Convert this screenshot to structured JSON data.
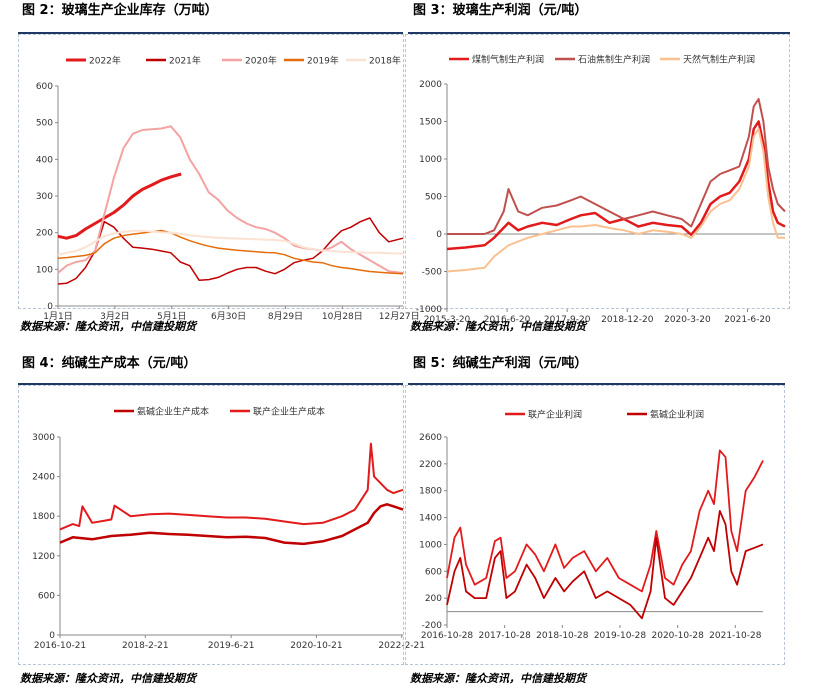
{
  "colors": {
    "rule": "#1f3864"
  },
  "panels": [
    {
      "title": "图 2：玻璃生产企业库存（万吨）",
      "source": "数据来源：隆众资讯，中信建投期货"
    },
    {
      "title": "图 3：玻璃生产利润（元/吨）",
      "source": "数据来源：隆众资讯，中信建投期货"
    },
    {
      "title": "图 4：纯碱生产成本（元/吨）",
      "source": "数据来源：隆众资讯，中信建投期货"
    },
    {
      "title": "图 5：纯碱生产利润（元/吨）",
      "source": "数据来源：隆众资讯，中信建投期货"
    }
  ],
  "chart_data": [
    {
      "type": "line",
      "title": "图 2：玻璃生产企业库存（万吨）",
      "ylim": [
        0,
        600
      ],
      "yticks": [
        "0",
        "100",
        "200",
        "300",
        "400",
        "500",
        "600"
      ],
      "xlim": [
        1,
        365
      ],
      "xticks": [
        {
          "x": 1,
          "label": "1月1日"
        },
        {
          "x": 61,
          "label": "3月2日"
        },
        {
          "x": 121,
          "label": "5月1日"
        },
        {
          "x": 181,
          "label": "6月30日"
        },
        {
          "x": 241,
          "label": "8月29日"
        },
        {
          "x": 301,
          "label": "10月28日"
        },
        {
          "x": 361,
          "label": "12月27日"
        }
      ],
      "legend_position": "top",
      "series": [
        {
          "name": "2022年",
          "color": "#e31a1c",
          "width": 3,
          "x": [
            1,
            10,
            20,
            30,
            40,
            50,
            60,
            70,
            80,
            90,
            100,
            110,
            120,
            131
          ],
          "values": [
            190,
            185,
            192,
            210,
            225,
            240,
            255,
            275,
            300,
            318,
            330,
            343,
            352,
            360
          ]
        },
        {
          "name": "2021年",
          "color": "#c00000",
          "width": 1.5,
          "x": [
            1,
            10,
            20,
            30,
            40,
            50,
            60,
            70,
            80,
            90,
            100,
            110,
            120,
            130,
            140,
            150,
            160,
            170,
            180,
            190,
            200,
            210,
            220,
            230,
            240,
            250,
            260,
            270,
            280,
            290,
            300,
            310,
            320,
            330,
            340,
            350,
            365
          ],
          "values": [
            60,
            62,
            75,
            105,
            150,
            230,
            215,
            185,
            160,
            158,
            155,
            150,
            145,
            120,
            110,
            70,
            72,
            78,
            90,
            100,
            105,
            105,
            95,
            88,
            100,
            118,
            125,
            130,
            150,
            180,
            205,
            215,
            230,
            240,
            200,
            175,
            185
          ]
        },
        {
          "name": "2020年",
          "color": "#f4a3a3",
          "width": 2,
          "x": [
            1,
            10,
            20,
            30,
            40,
            50,
            60,
            70,
            80,
            90,
            100,
            110,
            120,
            130,
            140,
            150,
            160,
            170,
            180,
            190,
            200,
            210,
            220,
            230,
            240,
            250,
            260,
            270,
            280,
            290,
            300,
            310,
            320,
            330,
            340,
            350,
            365
          ],
          "values": [
            90,
            110,
            120,
            125,
            150,
            250,
            350,
            430,
            470,
            480,
            482,
            484,
            490,
            460,
            400,
            360,
            310,
            290,
            260,
            240,
            225,
            215,
            210,
            200,
            185,
            165,
            158,
            155,
            150,
            160,
            175,
            155,
            140,
            125,
            110,
            95,
            90
          ]
        },
        {
          "name": "2019年",
          "color": "#e46c0a",
          "width": 1.5,
          "x": [
            1,
            10,
            20,
            30,
            40,
            50,
            60,
            70,
            80,
            90,
            100,
            110,
            120,
            130,
            140,
            150,
            160,
            170,
            180,
            190,
            200,
            210,
            220,
            230,
            240,
            250,
            260,
            270,
            280,
            290,
            300,
            310,
            320,
            330,
            340,
            350,
            365
          ],
          "values": [
            130,
            132,
            135,
            138,
            145,
            170,
            185,
            192,
            196,
            199,
            202,
            206,
            200,
            188,
            178,
            170,
            163,
            158,
            155,
            152,
            150,
            148,
            146,
            145,
            140,
            130,
            125,
            120,
            118,
            110,
            105,
            102,
            98,
            94,
            92,
            90,
            88
          ]
        },
        {
          "name": "2018年",
          "color": "#fbe2d2",
          "width": 2,
          "x": [
            1,
            10,
            20,
            30,
            40,
            50,
            60,
            70,
            80,
            90,
            100,
            110,
            120,
            130,
            140,
            150,
            160,
            170,
            180,
            190,
            200,
            210,
            220,
            230,
            240,
            250,
            260,
            270,
            280,
            290,
            300,
            310,
            320,
            330,
            340,
            350,
            365
          ],
          "values": [
            140,
            145,
            150,
            160,
            175,
            190,
            198,
            202,
            205,
            205,
            203,
            201,
            200,
            197,
            193,
            190,
            188,
            186,
            185,
            184,
            183,
            182,
            181,
            180,
            178,
            170,
            160,
            155,
            152,
            150,
            148,
            147,
            146,
            145,
            145,
            144,
            143
          ]
        }
      ]
    },
    {
      "type": "line",
      "title": "图 3：玻璃生产利润（元/吨）",
      "ylim": [
        -1000,
        2000
      ],
      "yticks": [
        "-1000",
        "-500",
        "0",
        "500",
        "1000",
        "1500",
        "2000"
      ],
      "xlim": [
        2015.22,
        2022.25
      ],
      "xticks": [
        {
          "x": 2015.22,
          "label": "2015-3-20"
        },
        {
          "x": 2016.47,
          "label": "2016-6-20"
        },
        {
          "x": 2017.72,
          "label": "2017-9-20"
        },
        {
          "x": 2018.97,
          "label": "2018-12-20"
        },
        {
          "x": 2020.22,
          "label": "2020-3-20"
        },
        {
          "x": 2021.47,
          "label": "2021-6-20"
        }
      ],
      "legend_position": "top",
      "series": [
        {
          "name": "煤制气制生产利润",
          "color": "#e31a1c",
          "width": 2.5,
          "x": [
            2015.22,
            2015.6,
            2016.0,
            2016.2,
            2016.5,
            2016.7,
            2016.9,
            2017.2,
            2017.5,
            2017.8,
            2018.0,
            2018.3,
            2018.6,
            2018.9,
            2019.2,
            2019.5,
            2019.8,
            2020.1,
            2020.3,
            2020.5,
            2020.7,
            2020.9,
            2021.1,
            2021.3,
            2021.5,
            2021.6,
            2021.7,
            2021.8,
            2021.9,
            2022.0,
            2022.1,
            2022.25
          ],
          "values": [
            -200,
            -180,
            -150,
            -50,
            150,
            50,
            100,
            150,
            120,
            200,
            250,
            280,
            150,
            200,
            100,
            150,
            120,
            100,
            -10,
            150,
            400,
            500,
            550,
            700,
            1000,
            1400,
            1500,
            1200,
            700,
            300,
            150,
            100
          ]
        },
        {
          "name": "石油焦制生产利润",
          "color": "#c0504d",
          "width": 2,
          "x": [
            2015.22,
            2015.6,
            2016.0,
            2016.2,
            2016.4,
            2016.5,
            2016.7,
            2016.9,
            2017.2,
            2017.5,
            2017.8,
            2018.0,
            2018.3,
            2018.6,
            2018.9,
            2019.2,
            2019.5,
            2019.8,
            2020.1,
            2020.3,
            2020.5,
            2020.7,
            2020.9,
            2021.1,
            2021.3,
            2021.5,
            2021.6,
            2021.7,
            2021.8,
            2021.9,
            2022.0,
            2022.1,
            2022.25
          ],
          "values": [
            0,
            0,
            0,
            50,
            300,
            600,
            300,
            250,
            350,
            380,
            450,
            500,
            400,
            300,
            200,
            250,
            300,
            250,
            200,
            100,
            400,
            700,
            800,
            850,
            900,
            1300,
            1700,
            1800,
            1500,
            900,
            600,
            400,
            300
          ]
        },
        {
          "name": "天然气制生产利润",
          "color": "#fac090",
          "width": 2,
          "x": [
            2015.22,
            2015.6,
            2016.0,
            2016.2,
            2016.5,
            2016.7,
            2016.9,
            2017.2,
            2017.5,
            2017.8,
            2018.0,
            2018.3,
            2018.6,
            2018.9,
            2019.2,
            2019.5,
            2019.8,
            2020.1,
            2020.3,
            2020.5,
            2020.7,
            2020.9,
            2021.1,
            2021.3,
            2021.5,
            2021.6,
            2021.7,
            2021.8,
            2021.9,
            2022.0,
            2022.1,
            2022.25
          ],
          "values": [
            -500,
            -480,
            -450,
            -300,
            -150,
            -100,
            -50,
            0,
            50,
            100,
            100,
            120,
            80,
            50,
            0,
            50,
            30,
            0,
            -50,
            100,
            300,
            400,
            450,
            600,
            900,
            1300,
            1400,
            1100,
            500,
            150,
            -50,
            -50
          ]
        }
      ]
    },
    {
      "type": "line",
      "title": "图 4：纯碱生产成本（元/吨）",
      "ylim": [
        0,
        3000
      ],
      "yticks": [
        "0",
        "600",
        "1200",
        "1800",
        "2400",
        "3000"
      ],
      "xlim": [
        2016.8,
        2022.15
      ],
      "xticks": [
        {
          "x": 2016.8,
          "label": "2016-10-21"
        },
        {
          "x": 2018.13,
          "label": "2018-2-21"
        },
        {
          "x": 2019.47,
          "label": "2019-6-21"
        },
        {
          "x": 2020.8,
          "label": "2020-10-21"
        },
        {
          "x": 2022.13,
          "label": "2022-2-21"
        }
      ],
      "legend_position": "top",
      "series": [
        {
          "name": "氨碱企业生产成本",
          "color": "#c00000",
          "width": 2.5,
          "x": [
            2016.8,
            2017.0,
            2017.3,
            2017.6,
            2017.9,
            2018.2,
            2018.5,
            2018.8,
            2019.1,
            2019.4,
            2019.7,
            2020.0,
            2020.3,
            2020.6,
            2020.9,
            2021.2,
            2021.4,
            2021.6,
            2021.7,
            2021.8,
            2021.9,
            2022.0,
            2022.15
          ],
          "values": [
            1400,
            1480,
            1450,
            1500,
            1520,
            1550,
            1530,
            1520,
            1500,
            1480,
            1490,
            1470,
            1400,
            1380,
            1420,
            1500,
            1600,
            1700,
            1850,
            1950,
            1980,
            1950,
            1900
          ]
        },
        {
          "name": "联产企业生产成本",
          "color": "#e31a1c",
          "width": 2,
          "x": [
            2016.8,
            2017.0,
            2017.1,
            2017.15,
            2017.3,
            2017.6,
            2017.65,
            2017.9,
            2018.2,
            2018.5,
            2018.8,
            2019.1,
            2019.4,
            2019.7,
            2020.0,
            2020.3,
            2020.6,
            2020.9,
            2021.2,
            2021.4,
            2021.6,
            2021.65,
            2021.7,
            2021.8,
            2021.9,
            2022.0,
            2022.15
          ],
          "values": [
            1600,
            1680,
            1650,
            1950,
            1700,
            1750,
            1960,
            1800,
            1830,
            1840,
            1820,
            1800,
            1780,
            1780,
            1760,
            1720,
            1680,
            1700,
            1800,
            1900,
            2200,
            2900,
            2400,
            2300,
            2200,
            2150,
            2200
          ]
        }
      ]
    },
    {
      "type": "line",
      "title": "图 5：纯碱生产利润（元/吨）",
      "ylim": [
        -200,
        2600
      ],
      "yticks": [
        "-200",
        "200",
        "600",
        "1000",
        "1400",
        "1800",
        "2200",
        "2600"
      ],
      "xlim": [
        2016.82,
        2022.3
      ],
      "xticks": [
        {
          "x": 2016.82,
          "label": "2016-10-28"
        },
        {
          "x": 2017.82,
          "label": "2017-10-28"
        },
        {
          "x": 2018.82,
          "label": "2018-10-28"
        },
        {
          "x": 2019.82,
          "label": "2019-10-28"
        },
        {
          "x": 2020.82,
          "label": "2020-10-28"
        },
        {
          "x": 2021.82,
          "label": "2021-10-28"
        }
      ],
      "legend_position": "top",
      "series": [
        {
          "name": "联产企业利润",
          "color": "#e31a1c",
          "width": 1.8,
          "x": [
            2016.82,
            2016.95,
            2017.05,
            2017.15,
            2017.3,
            2017.5,
            2017.65,
            2017.75,
            2017.85,
            2018.0,
            2018.2,
            2018.35,
            2018.5,
            2018.7,
            2018.85,
            2019.0,
            2019.2,
            2019.4,
            2019.6,
            2019.8,
            2020.0,
            2020.2,
            2020.35,
            2020.45,
            2020.6,
            2020.75,
            2020.9,
            2021.05,
            2021.2,
            2021.35,
            2021.45,
            2021.55,
            2021.65,
            2021.75,
            2021.85,
            2022.0,
            2022.15,
            2022.3
          ],
          "values": [
            500,
            1100,
            1250,
            700,
            400,
            500,
            1050,
            1100,
            500,
            600,
            1000,
            850,
            600,
            1000,
            650,
            800,
            900,
            600,
            800,
            500,
            400,
            300,
            700,
            1200,
            500,
            400,
            700,
            900,
            1500,
            1800,
            1600,
            2400,
            2300,
            1200,
            900,
            1800,
            2000,
            2250
          ]
        },
        {
          "name": "氨碱企业利润",
          "color": "#c00000",
          "width": 1.8,
          "x": [
            2016.82,
            2016.95,
            2017.05,
            2017.15,
            2017.3,
            2017.5,
            2017.65,
            2017.75,
            2017.85,
            2018.0,
            2018.2,
            2018.35,
            2018.5,
            2018.7,
            2018.85,
            2019.0,
            2019.2,
            2019.4,
            2019.6,
            2019.8,
            2020.0,
            2020.2,
            2020.35,
            2020.45,
            2020.6,
            2020.75,
            2020.9,
            2021.05,
            2021.2,
            2021.35,
            2021.45,
            2021.55,
            2021.65,
            2021.75,
            2021.85,
            2022.0,
            2022.15,
            2022.3
          ],
          "values": [
            100,
            600,
            800,
            300,
            200,
            200,
            800,
            900,
            200,
            300,
            700,
            500,
            200,
            500,
            300,
            450,
            600,
            200,
            300,
            200,
            100,
            -100,
            300,
            1100,
            200,
            100,
            300,
            500,
            800,
            1100,
            900,
            1500,
            1300,
            600,
            400,
            900,
            950,
            1000
          ]
        }
      ]
    }
  ]
}
